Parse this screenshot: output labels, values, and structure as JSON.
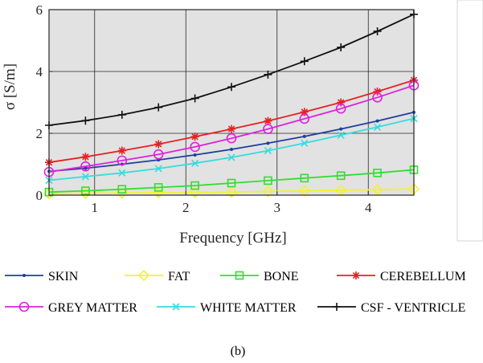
{
  "chart_data": {
    "type": "line",
    "xlabel": "Frequency [GHz]",
    "ylabel": "σ [S/m]",
    "xlim": [
      0.5,
      4.5
    ],
    "ylim": [
      0,
      6
    ],
    "xticks": [
      1,
      2,
      3,
      4
    ],
    "yticks": [
      0,
      2,
      4,
      6
    ],
    "grid": true,
    "background": "#e2e2e2",
    "legend_position": "bottom",
    "caption": "(b)",
    "x": [
      0.5,
      0.9,
      1.3,
      1.7,
      2.1,
      2.5,
      2.9,
      3.3,
      3.7,
      4.1,
      4.5
    ],
    "series": [
      {
        "name": "SKIN",
        "color": "#1f3f9f",
        "marker": "dot",
        "values": [
          0.77,
          0.87,
          1.0,
          1.14,
          1.3,
          1.48,
          1.68,
          1.9,
          2.14,
          2.4,
          2.68
        ]
      },
      {
        "name": "FAT",
        "color": "#f2f230",
        "marker": "diamond",
        "values": [
          0.05,
          0.06,
          0.07,
          0.08,
          0.09,
          0.1,
          0.12,
          0.14,
          0.16,
          0.18,
          0.2
        ]
      },
      {
        "name": "BONE",
        "color": "#33dd33",
        "marker": "square",
        "values": [
          0.1,
          0.14,
          0.19,
          0.25,
          0.31,
          0.39,
          0.47,
          0.55,
          0.63,
          0.72,
          0.82
        ]
      },
      {
        "name": "CEREBELLUM",
        "color": "#e52222",
        "marker": "star",
        "values": [
          1.06,
          1.24,
          1.44,
          1.65,
          1.89,
          2.14,
          2.4,
          2.69,
          3.0,
          3.35,
          3.72
        ]
      },
      {
        "name": "GREY MATTER",
        "color": "#dd22dd",
        "marker": "circle",
        "values": [
          0.75,
          0.93,
          1.12,
          1.32,
          1.56,
          1.84,
          2.14,
          2.47,
          2.8,
          3.16,
          3.55
        ]
      },
      {
        "name": "WHITE MATTER",
        "color": "#33dddd",
        "marker": "x",
        "values": [
          0.48,
          0.6,
          0.72,
          0.86,
          1.03,
          1.22,
          1.44,
          1.68,
          1.94,
          2.2,
          2.48
        ]
      },
      {
        "name": "CSF - VENTRICLE",
        "color": "#111111",
        "marker": "plus",
        "values": [
          2.26,
          2.41,
          2.6,
          2.84,
          3.13,
          3.5,
          3.9,
          4.33,
          4.78,
          5.3,
          5.85
        ]
      }
    ]
  }
}
